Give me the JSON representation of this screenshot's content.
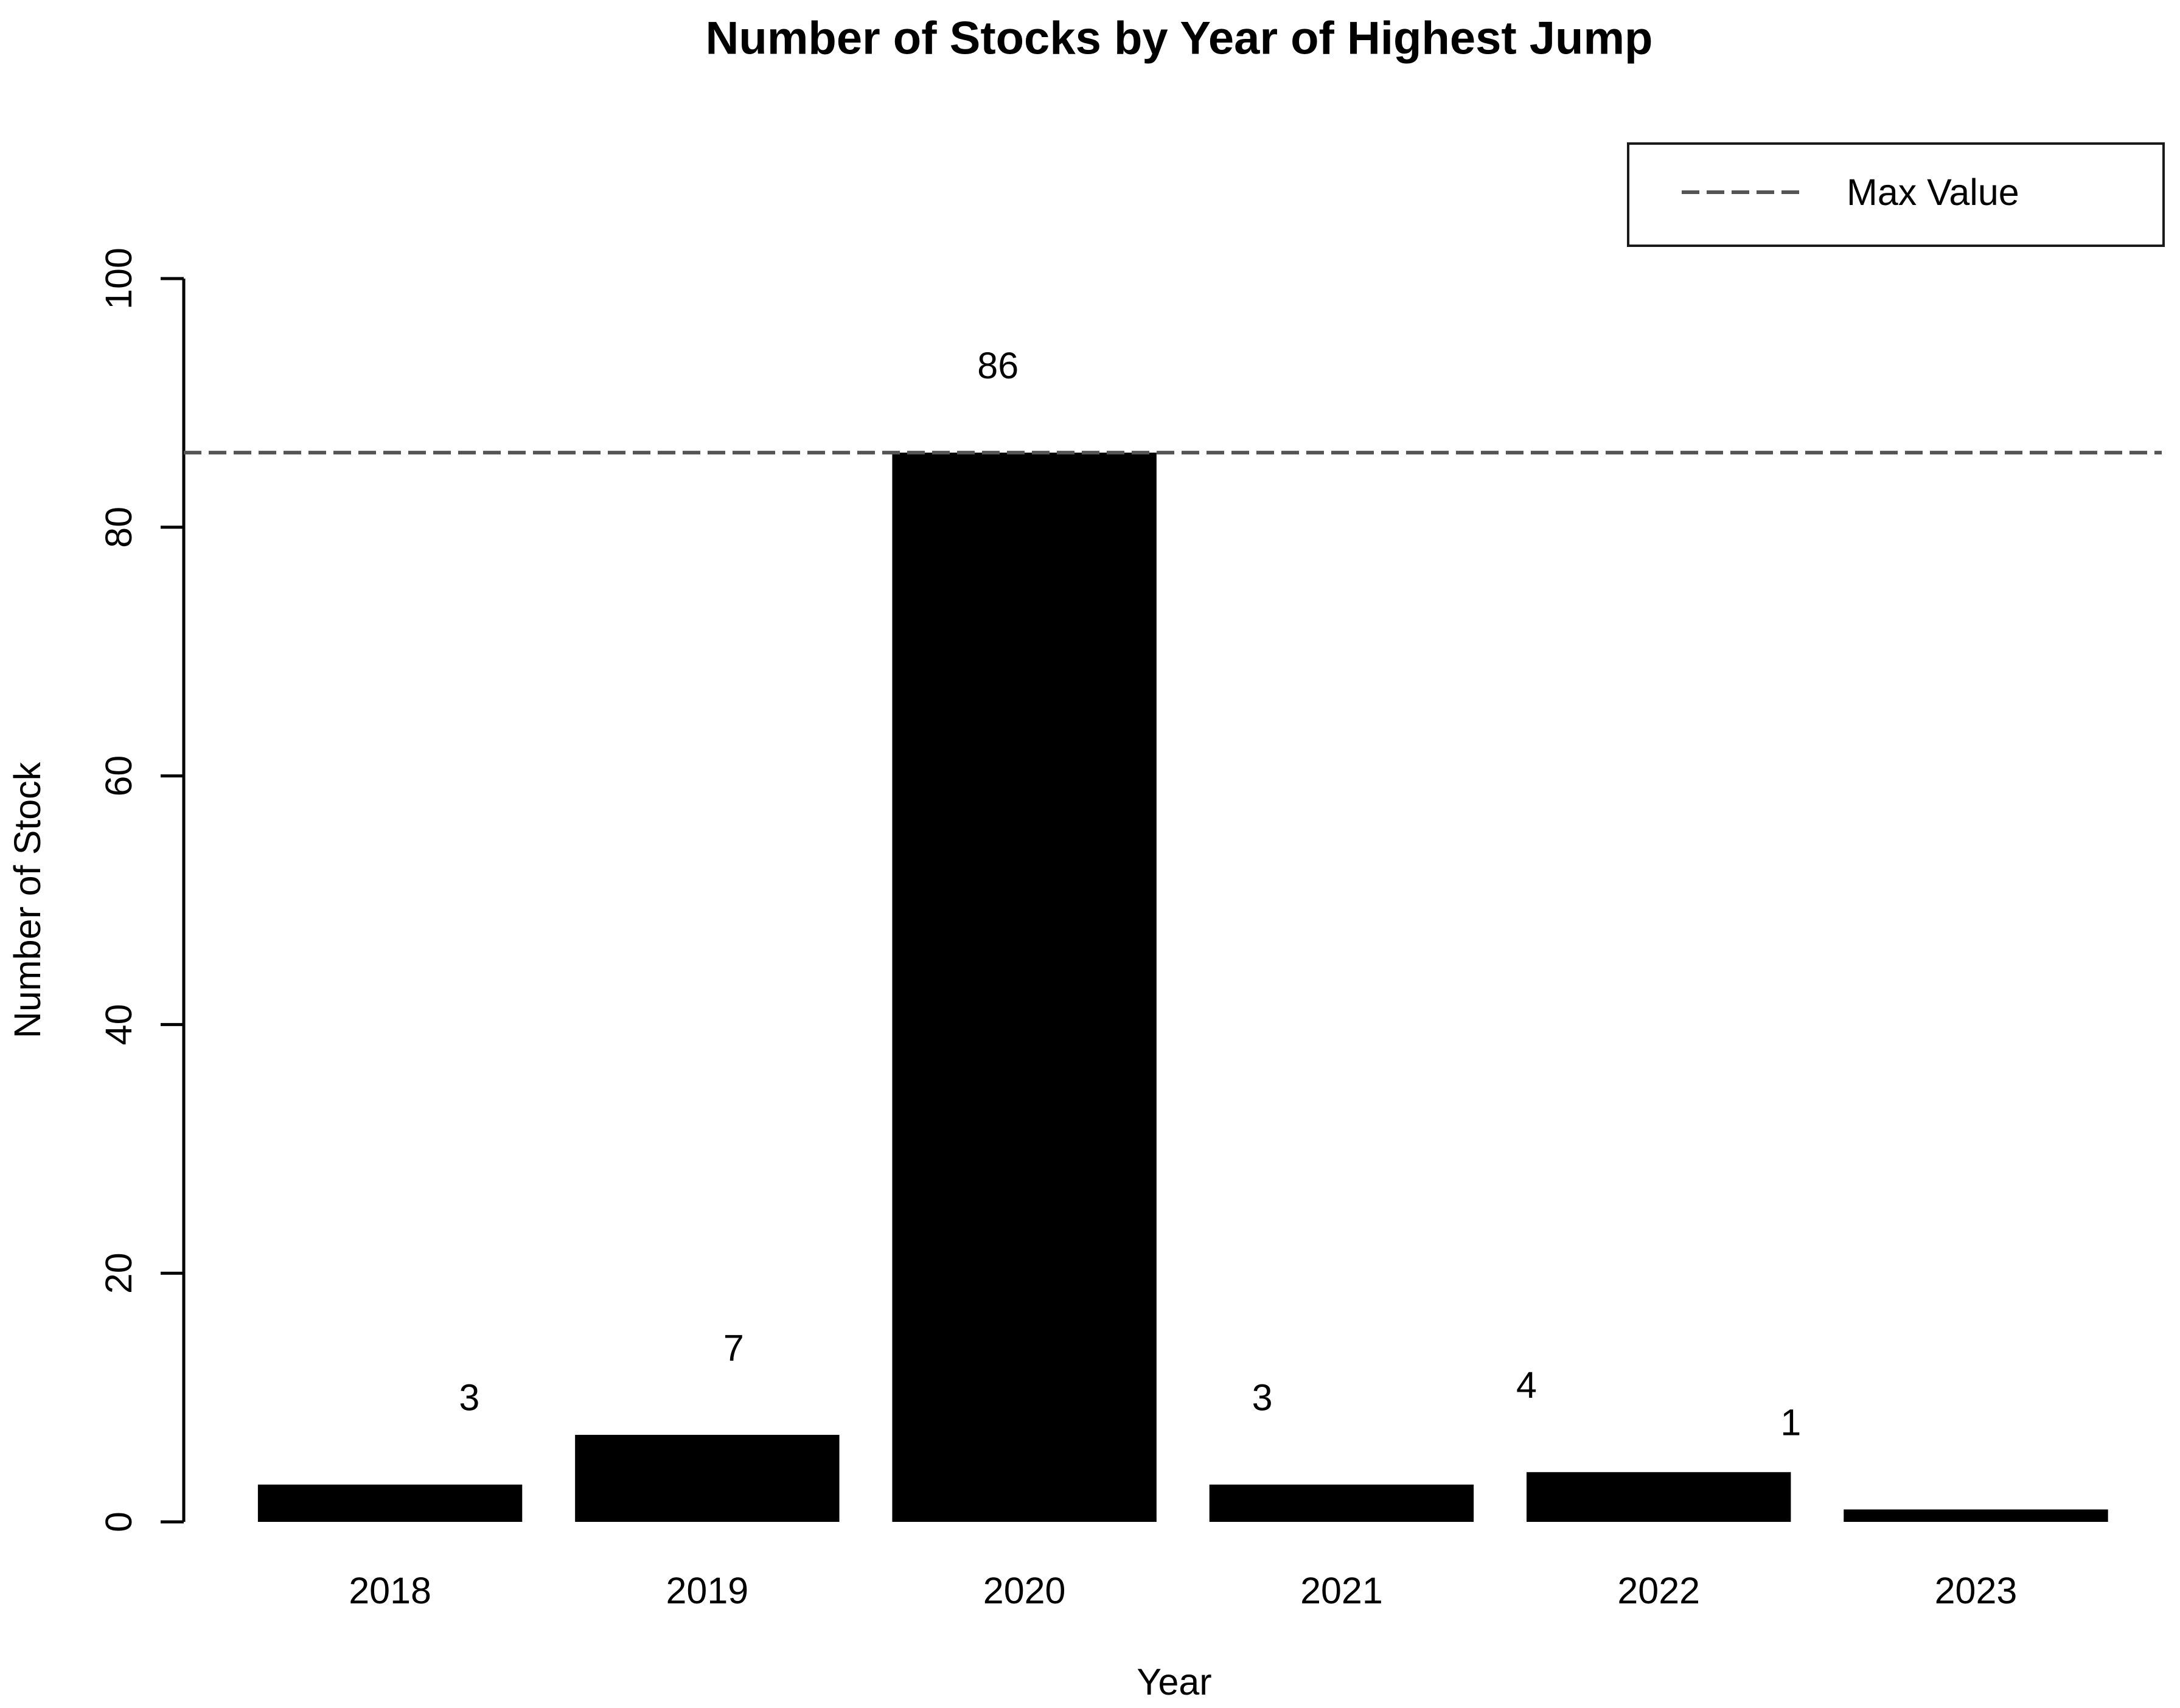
{
  "chart_data": {
    "type": "bar",
    "title": "Number of Stocks by Year of Highest Jump",
    "xlabel": "Year",
    "ylabel": "Number of Stock",
    "categories": [
      "2018",
      "2019",
      "2020",
      "2021",
      "2022",
      "2023"
    ],
    "values": [
      3,
      7,
      86,
      3,
      4,
      1
    ],
    "value_labels": [
      "3",
      "7",
      "86",
      "3",
      "4",
      "1"
    ],
    "ylim": [
      0,
      100
    ],
    "yticks": [
      0,
      20,
      40,
      60,
      80,
      100
    ],
    "grid": false,
    "bar_color": "#000000",
    "axis_color": "#000000",
    "max_line": {
      "value": 86,
      "style": "dashed",
      "color": "#555555"
    },
    "legend": {
      "position": "topright",
      "entries": [
        {
          "label": "Max Value",
          "line_style": "dashed",
          "color": "#555555"
        }
      ]
    }
  }
}
